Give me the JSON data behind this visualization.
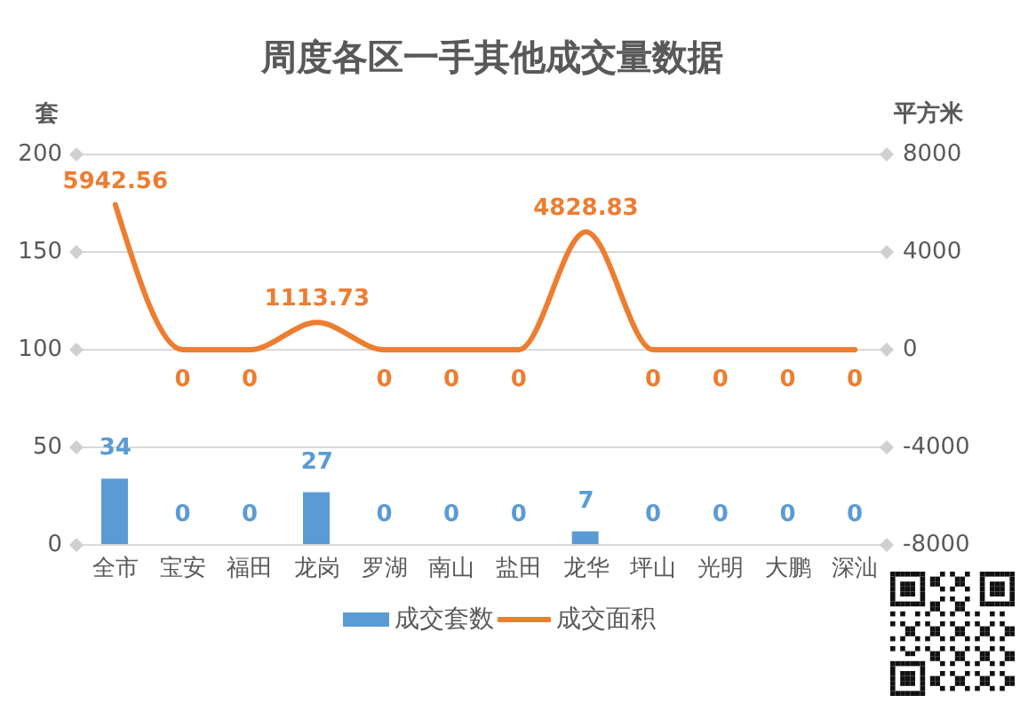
{
  "chart_data": {
    "type": "bar",
    "title": "周度各区一手其他成交量数据",
    "ylabel": "套",
    "y2label": "平方米",
    "categories": [
      "全市",
      "宝安",
      "福田",
      "龙岗",
      "罗湖",
      "南山",
      "盐田",
      "龙华",
      "坪山",
      "光明",
      "大鹏",
      "深汕"
    ],
    "series": [
      {
        "name": "成交套数",
        "color": "#5b9bd5",
        "values": [
          34,
          0,
          0,
          27,
          0,
          0,
          0,
          7,
          0,
          0,
          0,
          0
        ]
      },
      {
        "name": "成交面积",
        "type": "line",
        "axis": "y2",
        "color": "#ed7d31",
        "values": [
          5942.56,
          0,
          0,
          1113.73,
          0,
          0,
          0,
          4828.83,
          0,
          0,
          0,
          0
        ]
      }
    ],
    "ylim": [
      0,
      200
    ],
    "yticks": [
      0,
      50,
      100,
      150,
      200
    ],
    "y2lim": [
      -8000,
      8000
    ],
    "y2ticks": [
      -8000,
      -4000,
      0,
      4000,
      8000
    ],
    "grid": "y",
    "legend": "bottom",
    "data_labels": true,
    "marker": "none",
    "line_style": "solid"
  }
}
